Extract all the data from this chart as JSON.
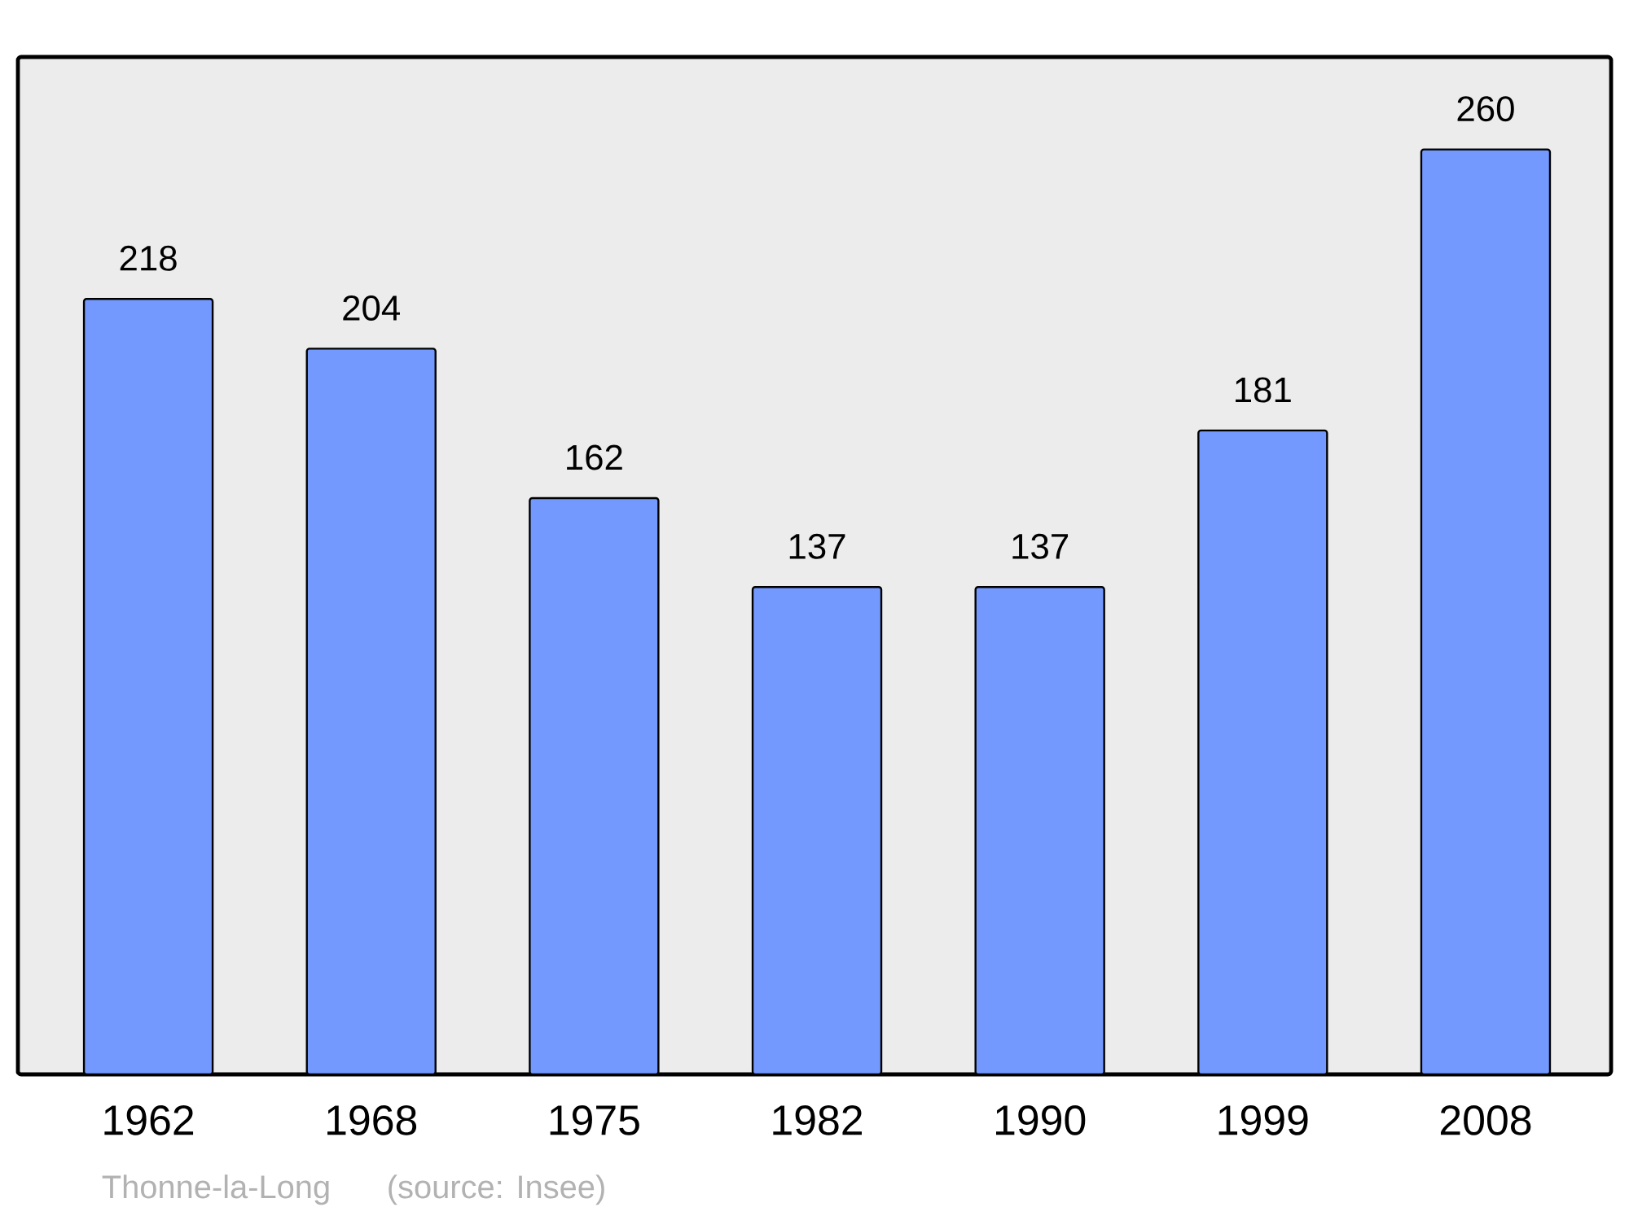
{
  "chart_data": {
    "type": "bar",
    "categories": [
      "1962",
      "1968",
      "1975",
      "1982",
      "1990",
      "1999",
      "2008"
    ],
    "values": [
      218,
      204,
      162,
      137,
      137,
      181,
      260
    ],
    "color": "#7399ff",
    "ylim": [
      0,
      286
    ],
    "data_labels": true,
    "annotations": [
      "Thonne-la-Long",
      "(source: Insee)"
    ]
  }
}
